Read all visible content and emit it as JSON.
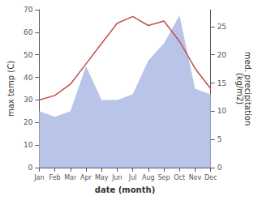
{
  "chart_data": {
    "type": "line",
    "xlabel": "date (month)",
    "ylabel": "max temp (C)",
    "y2label": "med. precipitation\n(kg/m2)",
    "categories": [
      "Jan",
      "Feb",
      "Mar",
      "Apr",
      "May",
      "Jun",
      "Jul",
      "Aug",
      "Sep",
      "Oct",
      "Nov",
      "Dec"
    ],
    "series": [
      {
        "type": "area",
        "axis": "y2",
        "color": "#b8c4e8",
        "values": [
          10,
          9,
          10,
          18,
          12,
          12,
          13,
          19,
          22,
          27,
          14,
          13
        ]
      },
      {
        "type": "line",
        "color": "#c0504d",
        "values": [
          30,
          32,
          37,
          46,
          55,
          64,
          67,
          63,
          65,
          56,
          44,
          35
        ]
      }
    ],
    "ylim": [
      0,
      70
    ],
    "yticks": [
      0,
      10,
      20,
      30,
      40,
      50,
      60,
      70
    ],
    "y2lim": [
      0,
      28
    ],
    "y2ticks": [
      0,
      5,
      10,
      15,
      20,
      25
    ],
    "grid": false
  }
}
